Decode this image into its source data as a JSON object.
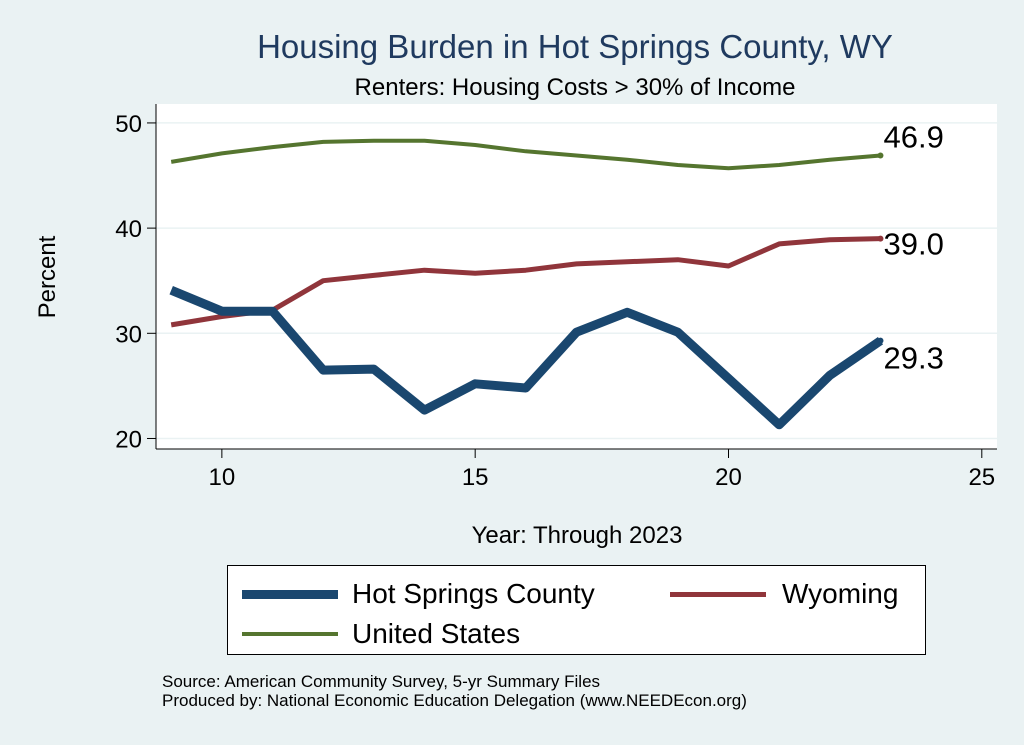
{
  "chart_data": {
    "type": "line",
    "title": "Housing Burden in Hot Springs County, WY",
    "subtitle": "Renters: Housing Costs > 30% of Income",
    "xlabel": "Year: Through 2023",
    "ylabel": "Percent",
    "xlim": [
      8.7,
      25.3
    ],
    "ylim": [
      19,
      51.8
    ],
    "xticks": [
      10,
      15,
      20,
      25
    ],
    "yticks": [
      20,
      30,
      40,
      50
    ],
    "grid": "horizontal",
    "legend_position": "bottom",
    "x": [
      9,
      10,
      11,
      12,
      13,
      14,
      15,
      16,
      17,
      18,
      19,
      20,
      21,
      22,
      23
    ],
    "series": [
      {
        "name": "Hot Springs County",
        "color": "#1a476f",
        "values": [
          34.1,
          32.1,
          32.1,
          26.5,
          26.6,
          22.7,
          25.2,
          24.8,
          30.1,
          32.0,
          30.1,
          25.7,
          21.3,
          26.0,
          29.3
        ],
        "end_label": "29.3"
      },
      {
        "name": "Wyoming",
        "color": "#90353b",
        "values": [
          30.8,
          31.6,
          32.2,
          35.0,
          35.5,
          36.0,
          35.7,
          36.0,
          36.6,
          36.8,
          37.0,
          36.4,
          38.5,
          38.9,
          39.0
        ],
        "end_label": "39.0"
      },
      {
        "name": "United States",
        "color": "#55752f",
        "values": [
          46.3,
          47.1,
          47.7,
          48.2,
          48.3,
          48.3,
          47.9,
          47.3,
          46.9,
          46.5,
          46.0,
          45.7,
          46.0,
          46.5,
          46.9
        ],
        "end_label": "46.9"
      }
    ]
  },
  "source_note": [
    "Source: American Community Survey, 5-yr Summary Files",
    "Produced by: National Economic Education Delegation (www.NEEDEcon.org)"
  ]
}
